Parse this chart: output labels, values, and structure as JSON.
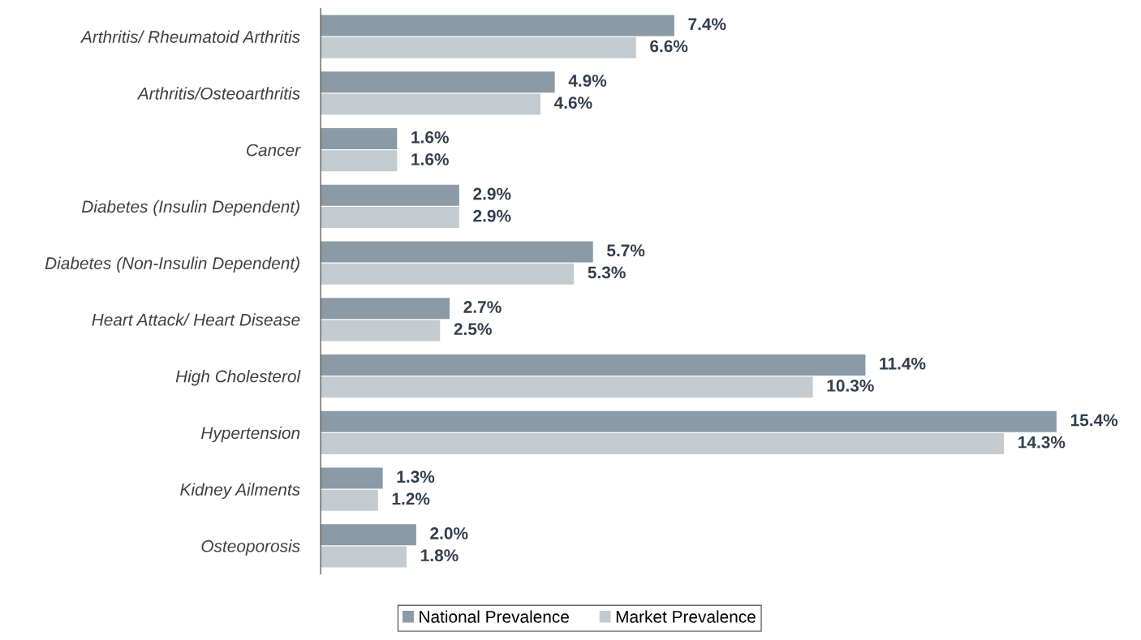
{
  "chart_data": {
    "type": "bar",
    "orientation": "horizontal",
    "categories": [
      "Arthritis/ Rheumatoid Arthritis",
      "Arthritis/Osteoarthritis",
      "Cancer",
      "Diabetes (Insulin Dependent)",
      "Diabetes (Non-Insulin Dependent)",
      "Heart Attack/ Heart Disease",
      "High Cholesterol",
      "Hypertension",
      "Kidney Ailments",
      "Osteoporosis"
    ],
    "series": [
      {
        "name": "National Prevalence",
        "color": "#8a9aa6",
        "values": [
          7.4,
          4.9,
          1.6,
          2.9,
          5.7,
          2.7,
          11.4,
          15.4,
          1.3,
          2.0
        ],
        "value_labels": [
          "7.4%",
          "4.9%",
          "1.6%",
          "2.9%",
          "5.7%",
          "2.7%",
          "11.4%",
          "15.4%",
          "1.3%",
          "2.0%"
        ]
      },
      {
        "name": "Market Prevalence",
        "color": "#c3cbd1",
        "values": [
          6.6,
          4.6,
          1.6,
          2.9,
          5.3,
          2.5,
          10.3,
          14.3,
          1.2,
          1.8
        ],
        "value_labels": [
          "6.6%",
          "4.6%",
          "1.6%",
          "2.9%",
          "5.3%",
          "2.5%",
          "10.3%",
          "14.3%",
          "1.2%",
          "1.8%"
        ]
      }
    ],
    "legend": "bottom",
    "grid": false
  }
}
